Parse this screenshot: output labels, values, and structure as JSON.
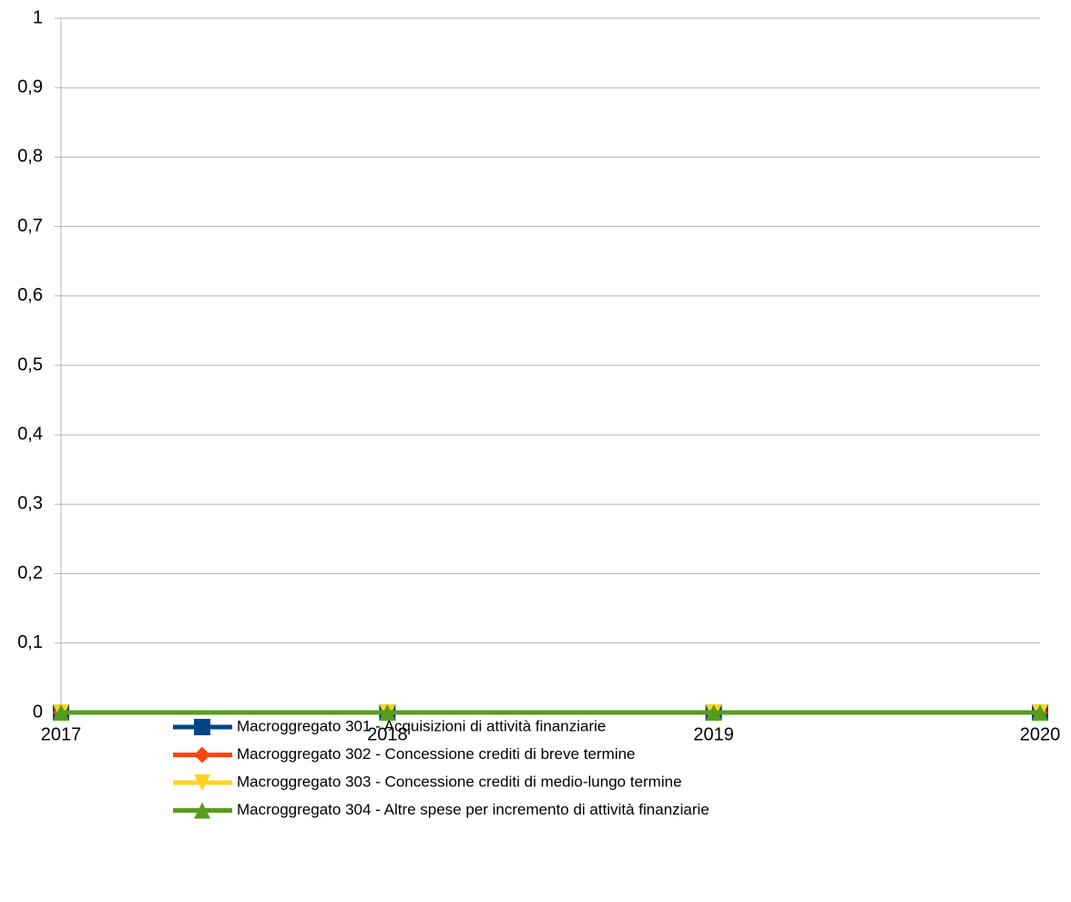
{
  "chart_data": {
    "type": "line",
    "categories": [
      "2017",
      "2018",
      "2019",
      "2020"
    ],
    "ylim": [
      0,
      1
    ],
    "yticks": [
      0,
      {
        "value": 0.1,
        "label": "0,1"
      },
      {
        "value": 0.2,
        "label": "0,2"
      },
      {
        "value": 0.3,
        "label": "0,3"
      },
      {
        "value": 0.4,
        "label": "0,4"
      },
      {
        "value": 0.5,
        "label": "0,5"
      },
      {
        "value": 0.6,
        "label": "0,6"
      },
      {
        "value": 0.7,
        "label": "0,7"
      },
      {
        "value": 0.8,
        "label": "0,8"
      },
      {
        "value": 0.9,
        "label": "0,9"
      },
      1
    ],
    "grid": true,
    "legend": "bottom",
    "series": [
      {
        "name": "Macroggregato 301 - Acquisizioni di attività finanziarie",
        "color": "#004586",
        "marker": "square",
        "values": [
          0,
          0,
          0,
          0
        ]
      },
      {
        "name": "Macroggregato 302 - Concessione crediti di breve termine",
        "color": "#ff420e",
        "marker": "diamond",
        "values": [
          0,
          0,
          0,
          0
        ]
      },
      {
        "name": "Macroggregato 303 - Concessione crediti di medio-lungo termine",
        "color": "#ffd320",
        "marker": "triangle-down",
        "values": [
          0,
          0,
          0,
          0
        ]
      },
      {
        "name": "Macroggregato 304 - Altre spese per incremento di attività finanziarie",
        "color": "#579d1c",
        "marker": "triangle-up",
        "values": [
          0,
          0,
          0,
          0
        ]
      }
    ]
  }
}
